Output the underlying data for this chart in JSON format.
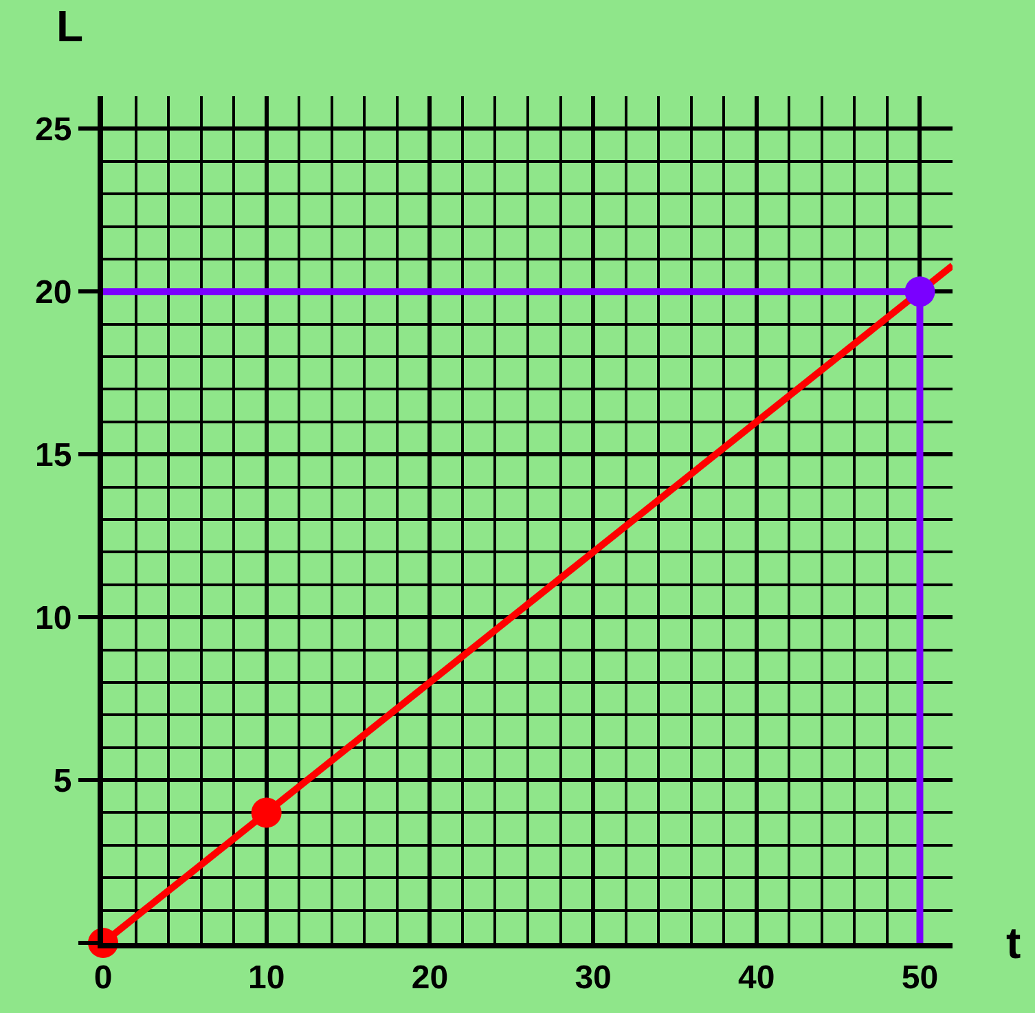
{
  "chart_data": {
    "type": "line",
    "xlabel": "t",
    "ylabel": "L",
    "xlim": [
      0,
      52
    ],
    "ylim": [
      0,
      26
    ],
    "xticks": [
      0,
      10,
      20,
      30,
      40,
      50
    ],
    "yticks": [
      {
        "value": 0,
        "label": null
      },
      5,
      10,
      15,
      20,
      25
    ],
    "grid": true,
    "legend": false,
    "line_style": "solid",
    "series": [
      {
        "color": "#7a00ff",
        "x": [
          0,
          50,
          50
        ],
        "values": [
          20,
          20,
          0
        ],
        "marker": "none"
      },
      {
        "color": "#ff0000",
        "x": [
          0,
          52
        ],
        "values": [
          0,
          20.8
        ],
        "marker": "none"
      },
      {
        "type": "scatter",
        "color": "#ff0000",
        "x": [
          0,
          10
        ],
        "values": [
          0,
          4
        ],
        "marker": "circle"
      },
      {
        "type": "scatter",
        "color": "#7a00ff",
        "x": [
          50
        ],
        "values": [
          20
        ],
        "marker": "circle"
      }
    ]
  }
}
